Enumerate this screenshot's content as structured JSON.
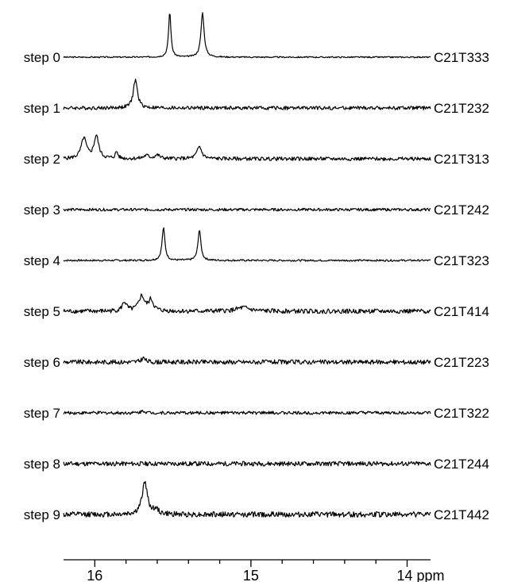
{
  "chart_data": {
    "type": "line",
    "title": "",
    "xlabel": "",
    "ylabel": "",
    "x_unit": "ppm",
    "xlim": [
      16.2,
      13.85
    ],
    "x_reversed": true,
    "grid": false,
    "x_ticks": [
      {
        "value": 16,
        "label": "16"
      },
      {
        "value": 15,
        "label": "15"
      },
      {
        "value": 14,
        "label": "14 ppm"
      }
    ],
    "x_minor_ticks": [
      15.8,
      15.6,
      15.4,
      15.2,
      14.8,
      14.6,
      14.4,
      14.2
    ],
    "line_color": "#000000",
    "series": [
      {
        "step": "step 0",
        "sample": "C21T333",
        "peaks": [
          {
            "x": 15.52,
            "height": 1.0,
            "width": 0.009
          },
          {
            "x": 15.31,
            "height": 0.98,
            "width": 0.012
          }
        ],
        "noise": 0.015
      },
      {
        "step": "step 1",
        "sample": "C21T232",
        "peaks": [
          {
            "x": 15.74,
            "height": 0.62,
            "width": 0.016
          }
        ],
        "noise": 0.04
      },
      {
        "step": "step 2",
        "sample": "C21T313",
        "peaks": [
          {
            "x": 16.07,
            "height": 0.45,
            "width": 0.02
          },
          {
            "x": 15.99,
            "height": 0.5,
            "width": 0.018
          },
          {
            "x": 15.86,
            "height": 0.15,
            "width": 0.01
          },
          {
            "x": 15.67,
            "height": 0.07,
            "width": 0.02
          },
          {
            "x": 15.6,
            "height": 0.08,
            "width": 0.02
          },
          {
            "x": 15.33,
            "height": 0.27,
            "width": 0.018
          }
        ],
        "noise": 0.04
      },
      {
        "step": "step 3",
        "sample": "C21T242",
        "peaks": [],
        "noise": 0.03
      },
      {
        "step": "step 4",
        "sample": "C21T323",
        "peaks": [
          {
            "x": 15.56,
            "height": 0.72,
            "width": 0.011
          },
          {
            "x": 15.33,
            "height": 0.68,
            "width": 0.011
          }
        ],
        "noise": 0.02
      },
      {
        "step": "step 5",
        "sample": "C21T414",
        "peaks": [
          {
            "x": 15.81,
            "height": 0.2,
            "width": 0.016
          },
          {
            "x": 15.7,
            "height": 0.33,
            "width": 0.022
          },
          {
            "x": 15.64,
            "height": 0.24,
            "width": 0.018
          },
          {
            "x": 15.05,
            "height": 0.08,
            "width": 0.05
          }
        ],
        "noise": 0.05
      },
      {
        "step": "step 6",
        "sample": "C21T223",
        "peaks": [
          {
            "x": 15.69,
            "height": 0.09,
            "width": 0.015
          }
        ],
        "noise": 0.05
      },
      {
        "step": "step 7",
        "sample": "C21T322",
        "peaks": [
          {
            "x": 15.69,
            "height": 0.05,
            "width": 0.015
          }
        ],
        "noise": 0.035
      },
      {
        "step": "step 8",
        "sample": "C21T244",
        "peaks": [],
        "noise": 0.05
      },
      {
        "step": "step 9",
        "sample": "C21T442",
        "peaks": [
          {
            "x": 15.68,
            "height": 0.72,
            "width": 0.02
          },
          {
            "x": 15.61,
            "height": 0.1,
            "width": 0.02
          }
        ],
        "noise": 0.06
      }
    ]
  }
}
